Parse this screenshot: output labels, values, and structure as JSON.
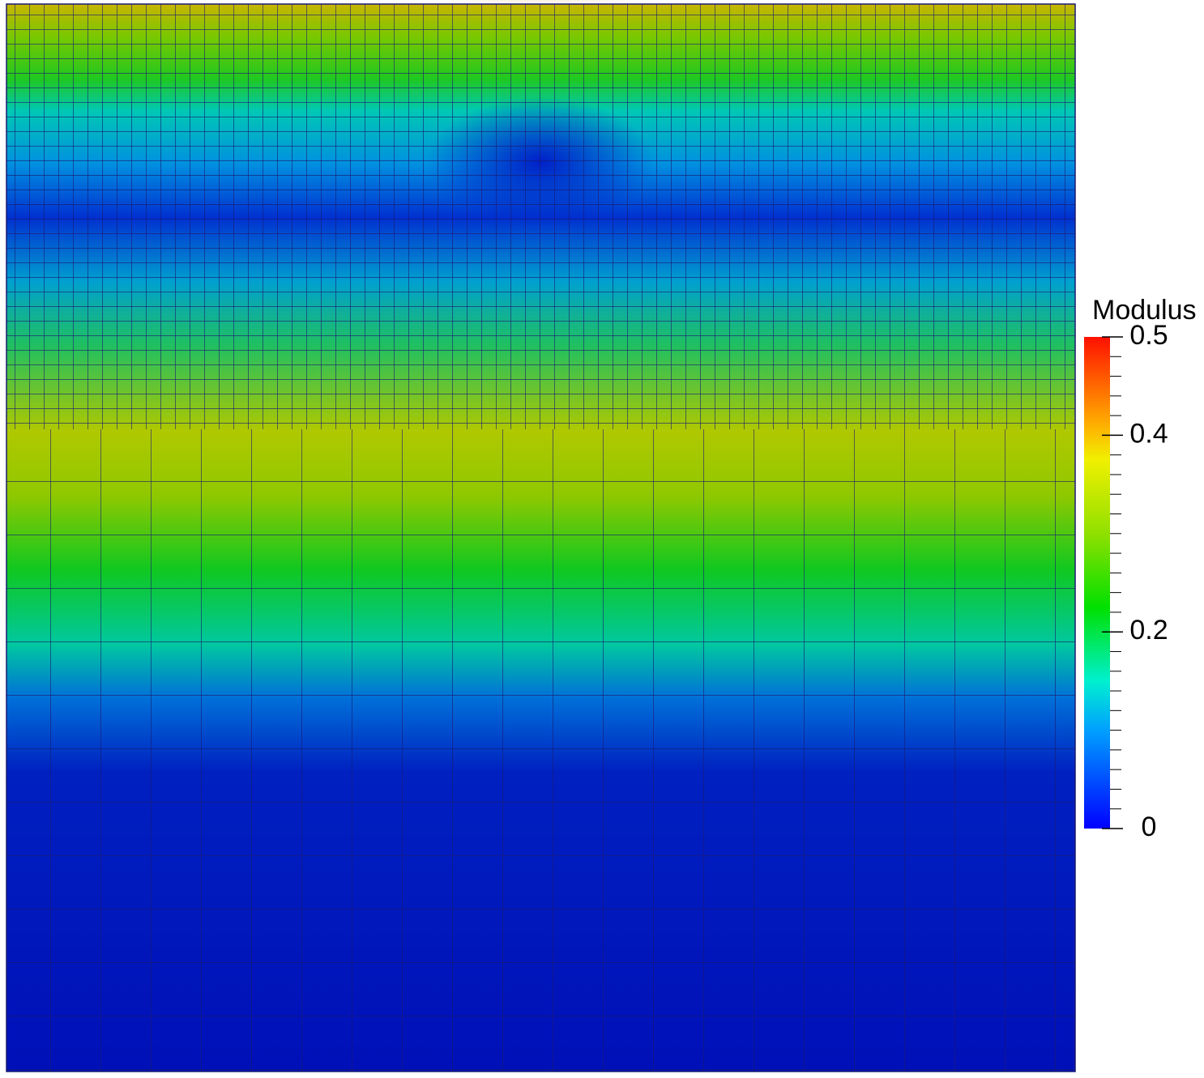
{
  "colorbar": {
    "title": "Modulus",
    "range": [
      0,
      0.5
    ],
    "ticks": [
      0,
      0.2,
      0.4,
      0.5
    ]
  }
}
